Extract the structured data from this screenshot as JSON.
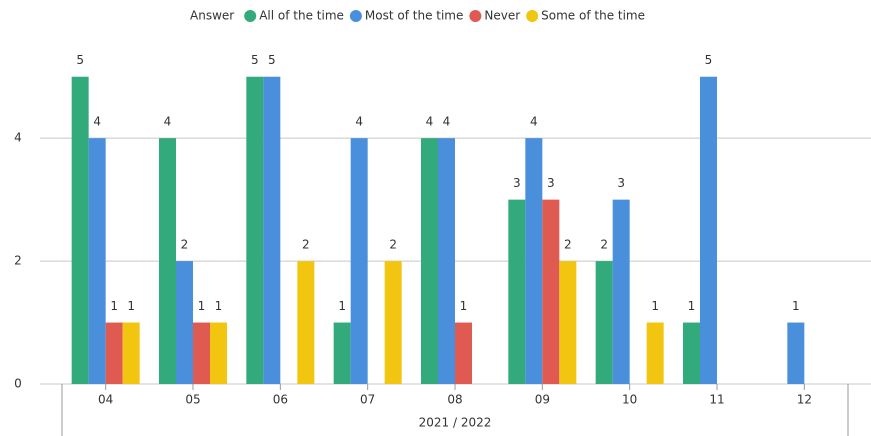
{
  "chart_data": {
    "type": "bar",
    "legend_title": "Answer",
    "x_label": "2021 / 2022",
    "categories": [
      "04",
      "05",
      "06",
      "07",
      "08",
      "09",
      "10",
      "11",
      "12"
    ],
    "series": [
      {
        "name": "All of the time",
        "color": "#33aa7c",
        "values": [
          5,
          4,
          5,
          1,
          4,
          3,
          2,
          1,
          null
        ]
      },
      {
        "name": "Most of the time",
        "color": "#4a8fdc",
        "values": [
          4,
          2,
          5,
          4,
          4,
          4,
          3,
          5,
          1
        ]
      },
      {
        "name": "Never",
        "color": "#df5a50",
        "values": [
          1,
          1,
          null,
          null,
          1,
          3,
          null,
          null,
          null
        ]
      },
      {
        "name": "Some of the time",
        "color": "#f2c511",
        "values": [
          1,
          1,
          2,
          2,
          null,
          2,
          1,
          null,
          null
        ]
      }
    ],
    "ylim": [
      0,
      5.5
    ],
    "yticks": [
      0,
      2,
      4
    ],
    "grid": true,
    "legend": "top"
  }
}
